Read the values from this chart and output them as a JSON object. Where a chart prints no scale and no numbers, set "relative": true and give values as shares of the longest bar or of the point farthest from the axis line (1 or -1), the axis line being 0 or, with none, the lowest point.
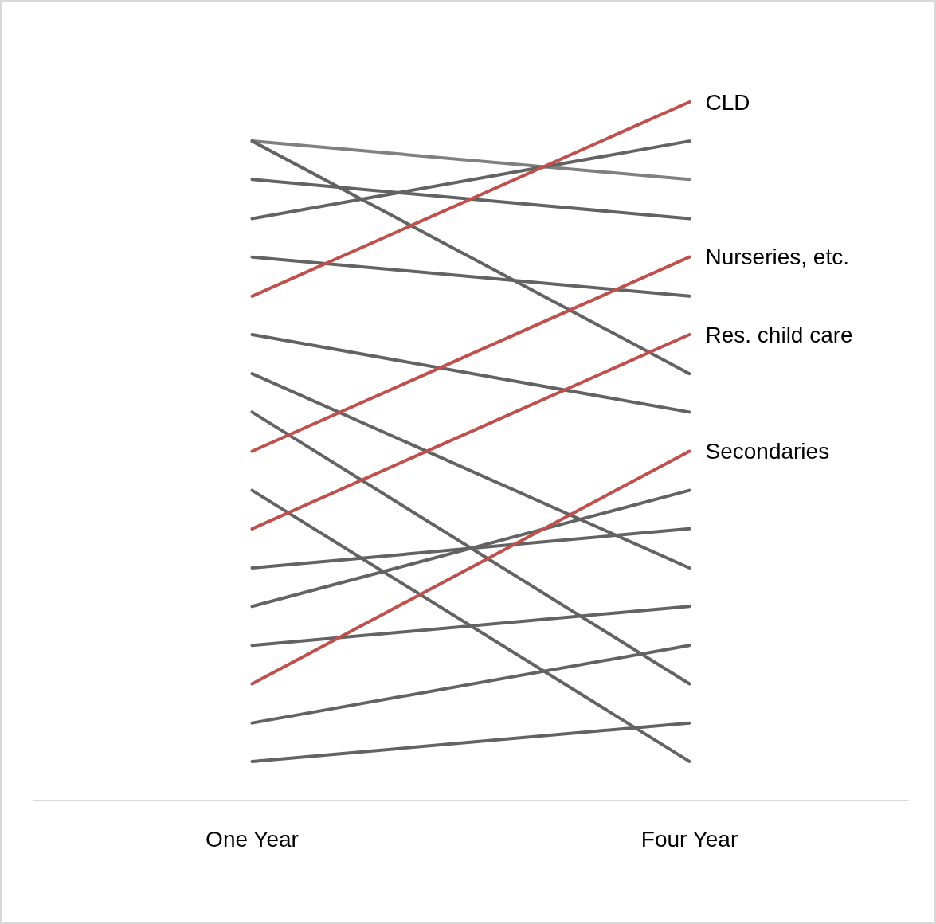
{
  "chart_data": {
    "type": "line",
    "relative": true,
    "categories": [
      "One Year",
      "Four Year"
    ],
    "legend": false,
    "grid": false,
    "marker": "none",
    "series": [
      {
        "color": "#808080",
        "values": [
          0.944,
          0.889
        ]
      },
      {
        "color": "#636363",
        "values": [
          0.944,
          0.611
        ]
      },
      {
        "color": "#636363",
        "values": [
          0.889,
          0.833
        ]
      },
      {
        "color": "#636363",
        "values": [
          0.833,
          0.944
        ]
      },
      {
        "color": "#636363",
        "values": [
          0.778,
          0.722
        ]
      },
      {
        "name": "CLD",
        "color": "#c0504d",
        "values": [
          0.722,
          1
        ]
      },
      {
        "color": "#636363",
        "values": [
          0.667,
          0.556
        ]
      },
      {
        "color": "#636363",
        "values": [
          0.611,
          0.333
        ]
      },
      {
        "color": "#636363",
        "values": [
          0.556,
          0.167
        ]
      },
      {
        "name": "Nurseries, etc.",
        "color": "#c0504d",
        "values": [
          0.5,
          0.778
        ]
      },
      {
        "color": "#636363",
        "values": [
          0.444,
          0.056
        ]
      },
      {
        "name": "Res. child care",
        "color": "#c0504d",
        "values": [
          0.389,
          0.667
        ]
      },
      {
        "color": "#636363",
        "values": [
          0.333,
          0.389
        ]
      },
      {
        "color": "#636363",
        "values": [
          0.278,
          0.444
        ]
      },
      {
        "color": "#636363",
        "values": [
          0.222,
          0.278
        ]
      },
      {
        "name": "Secondaries",
        "color": "#c0504d",
        "values": [
          0.167,
          0.5
        ]
      },
      {
        "color": "#636363",
        "values": [
          0.111,
          0.222
        ]
      },
      {
        "color": "#636363",
        "values": [
          0.056,
          0.111
        ]
      }
    ]
  }
}
